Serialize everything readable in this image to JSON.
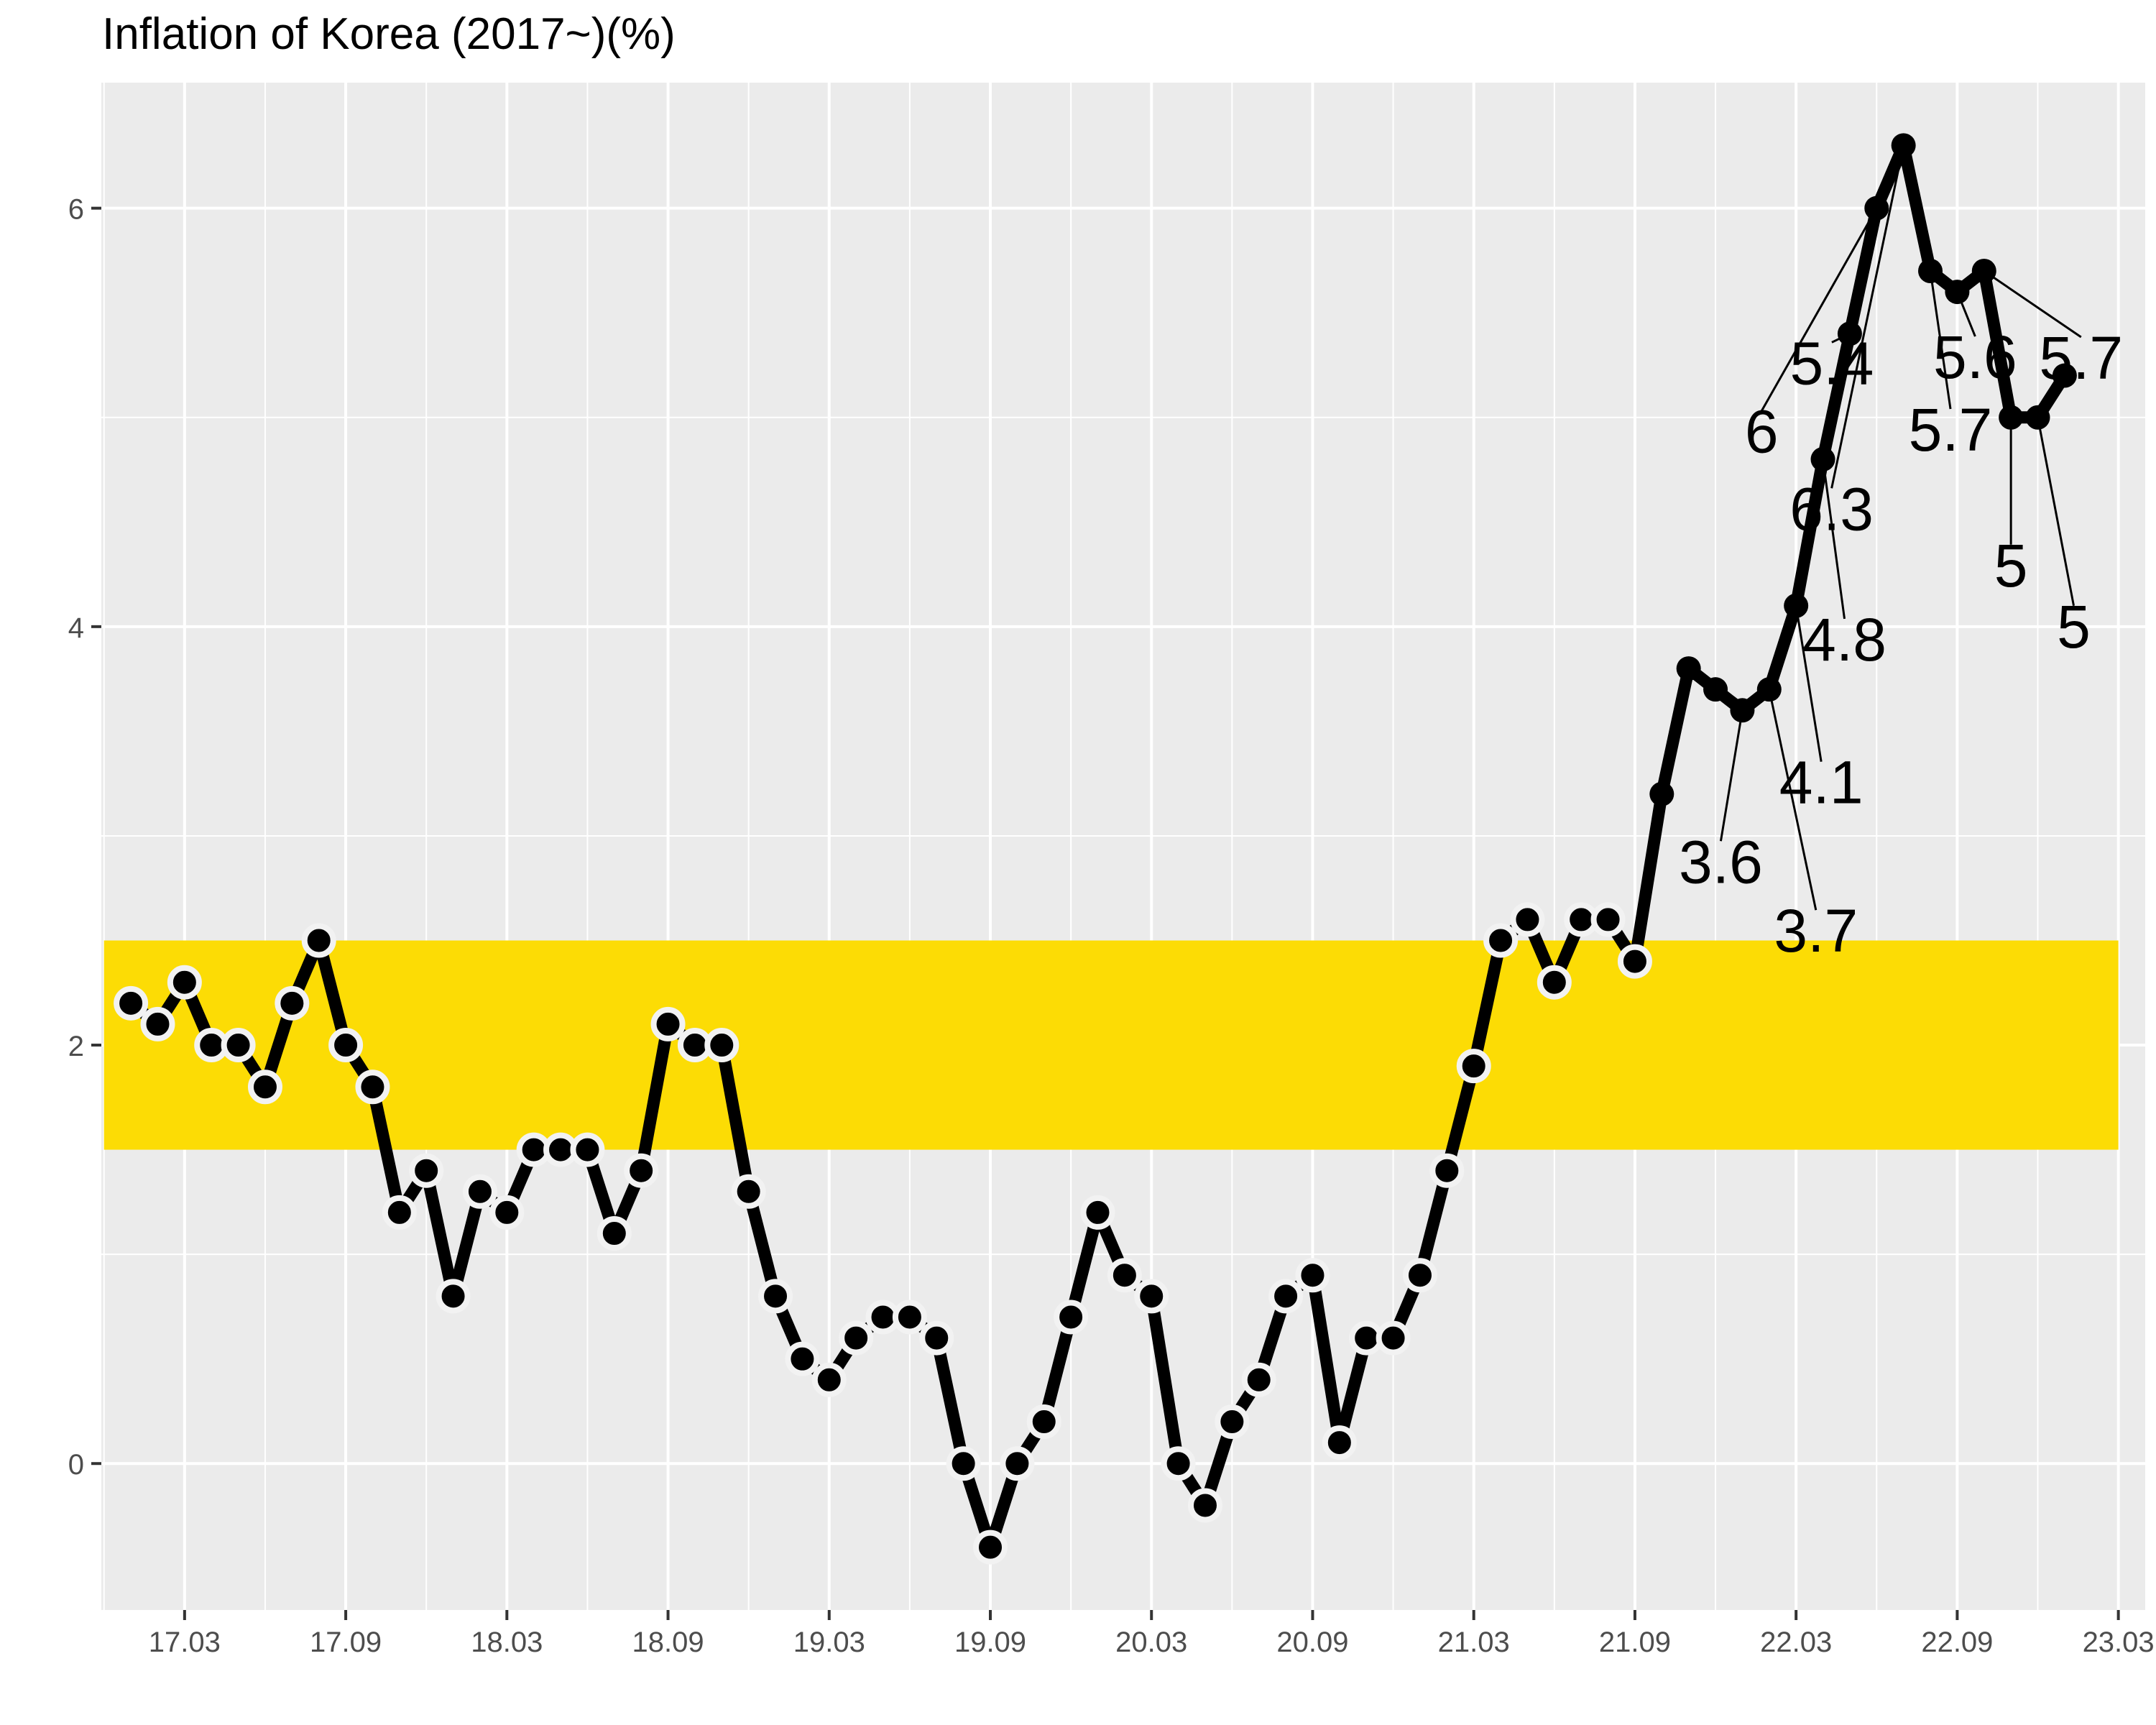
{
  "chart_data": {
    "type": "line",
    "title": "Inflation of Korea (2017~)(%)",
    "xlabel": "",
    "ylabel": "",
    "x_ticks": [
      "17.03",
      "17.09",
      "18.03",
      "18.09",
      "19.03",
      "19.09",
      "20.03",
      "20.09",
      "21.03",
      "21.09",
      "22.03",
      "22.09",
      "23.03"
    ],
    "y_ticks": [
      0,
      2,
      4,
      6
    ],
    "ylim": [
      -0.7,
      6.6
    ],
    "x_start": "17.01",
    "target_band": [
      1.5,
      2.5
    ],
    "grid": true,
    "series": [
      {
        "name": "",
        "x": [
          "17.01",
          "17.02",
          "17.03",
          "17.04",
          "17.05",
          "17.06",
          "17.07",
          "17.08",
          "17.09",
          "17.10",
          "17.11",
          "17.12",
          "18.01",
          "18.02",
          "18.03",
          "18.04",
          "18.05",
          "18.06",
          "18.07",
          "18.08",
          "18.09",
          "18.10",
          "18.11",
          "18.12",
          "19.01",
          "19.02",
          "19.03",
          "19.04",
          "19.05",
          "19.06",
          "19.07",
          "19.08",
          "19.09",
          "19.10",
          "19.11",
          "19.12",
          "20.01",
          "20.02",
          "20.03",
          "20.04",
          "20.05",
          "20.06",
          "20.07",
          "20.08",
          "20.09",
          "20.10",
          "20.11",
          "20.12",
          "21.01",
          "21.02",
          "21.03",
          "21.04",
          "21.05",
          "21.06",
          "21.07",
          "21.08",
          "21.09",
          "21.10",
          "21.11",
          "21.12",
          "22.01",
          "22.02",
          "22.03",
          "22.04",
          "22.05",
          "22.06",
          "22.07",
          "22.08",
          "22.09",
          "22.10",
          "22.11",
          "22.12",
          "23.01"
        ],
        "values": [
          2.2,
          2.1,
          2.3,
          2.0,
          2.0,
          1.8,
          2.2,
          2.5,
          2.0,
          1.8,
          1.2,
          1.4,
          0.8,
          1.3,
          1.2,
          1.5,
          1.5,
          1.5,
          1.1,
          1.4,
          2.1,
          2.0,
          2.0,
          1.3,
          0.8,
          0.5,
          0.4,
          0.6,
          0.7,
          0.7,
          0.6,
          0.0,
          -0.4,
          0.0,
          0.2,
          0.7,
          1.2,
          0.9,
          0.8,
          0.0,
          -0.2,
          0.2,
          0.4,
          0.8,
          0.9,
          0.1,
          0.6,
          0.6,
          0.9,
          1.4,
          1.9,
          2.5,
          2.6,
          2.3,
          2.6,
          2.6,
          2.4,
          3.2,
          3.8,
          3.7,
          3.6,
          3.7,
          4.1,
          4.8,
          5.4,
          6.0,
          6.3,
          5.7,
          5.6,
          5.7,
          5.0,
          5.0,
          5.2
        ]
      }
    ],
    "annotations": [
      {
        "x": "22.01",
        "value": 3.6,
        "text": "3.6"
      },
      {
        "x": "22.02",
        "value": 3.7,
        "text": "3.7"
      },
      {
        "x": "22.03",
        "value": 4.1,
        "text": "4.1"
      },
      {
        "x": "22.04",
        "value": 4.8,
        "text": "4.8"
      },
      {
        "x": "22.05",
        "value": 5.4,
        "text": "5.4"
      },
      {
        "x": "22.06",
        "value": 6.0,
        "text": "6"
      },
      {
        "x": "22.07",
        "value": 6.3,
        "text": "6.3"
      },
      {
        "x": "22.08",
        "value": 5.7,
        "text": "5.7"
      },
      {
        "x": "22.09",
        "value": 5.6,
        "text": "5.6"
      },
      {
        "x": "22.10",
        "value": 5.7,
        "text": "5.7"
      },
      {
        "x": "22.11",
        "value": 5.0,
        "text": "5"
      },
      {
        "x": "22.12",
        "value": 5.0,
        "text": "5"
      }
    ],
    "colors": {
      "panel": "#EBEBEB",
      "grid": "#FFFFFF",
      "band": "#FCDC05",
      "line": "#000000",
      "point_fill": "#000000",
      "point_stroke": "#F2F2F2",
      "tick_text": "#4D4D4D"
    }
  }
}
